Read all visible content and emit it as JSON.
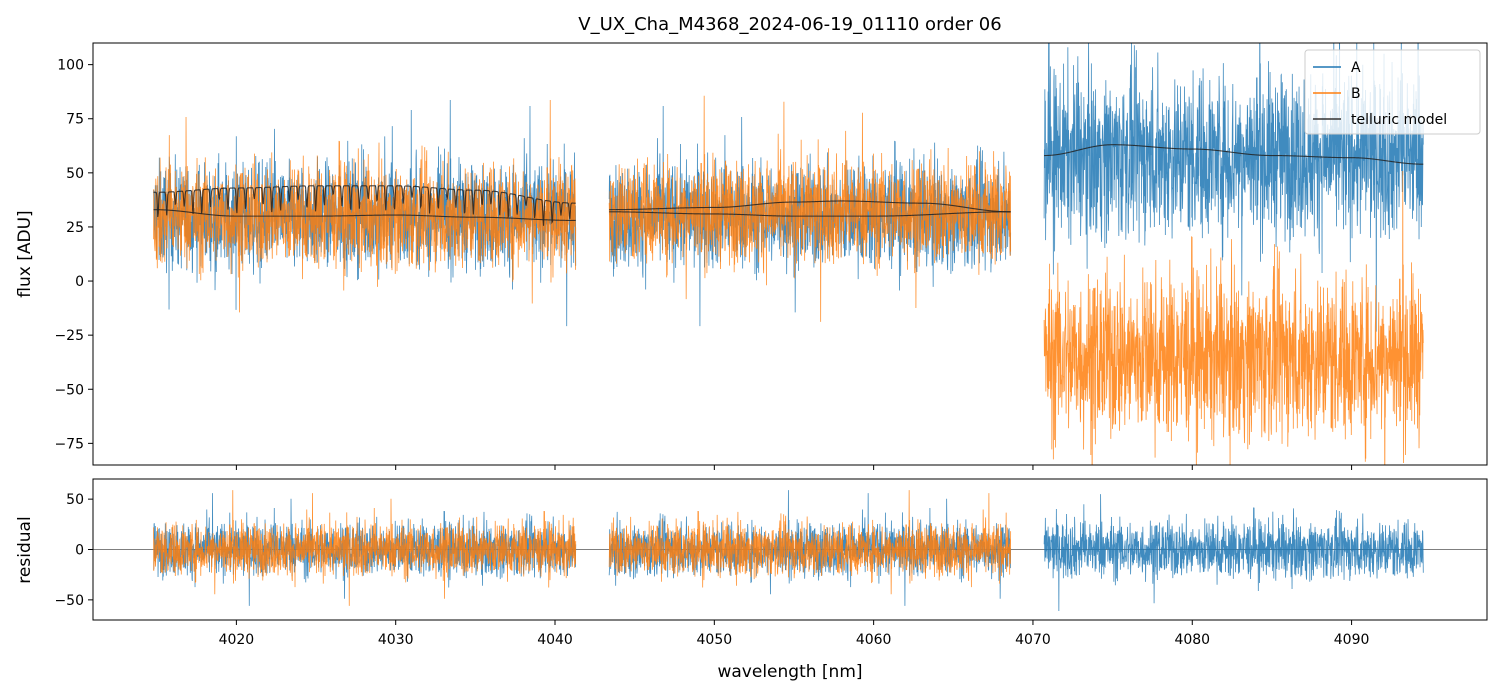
{
  "chart_data": [
    {
      "type": "line",
      "panel": "top",
      "title": "V_UX_Cha_M4368_2024-06-19_01110  order 06",
      "xlabel": "",
      "ylabel": "flux [ADU]",
      "xlim": [
        4011,
        4098.5
      ],
      "ylim": [
        -85,
        110
      ],
      "xticks": [
        4020,
        4030,
        4040,
        4050,
        4060,
        4070,
        4080,
        4090
      ],
      "yticks": [
        -75,
        -50,
        -25,
        0,
        25,
        50,
        75,
        100
      ],
      "grid": false,
      "legend": {
        "position": "top-right",
        "entries": [
          {
            "label": "A",
            "color": "#1f77b4"
          },
          {
            "label": "B",
            "color": "#ff7f0e"
          },
          {
            "label": "telluric model",
            "color": "#333333"
          }
        ]
      },
      "segments": [
        {
          "x_range": [
            4014.8,
            4041.3
          ],
          "series": [
            {
              "name": "A",
              "color": "#1f77b4",
              "mean": 30,
              "spread": 20
            },
            {
              "name": "B",
              "color": "#ff7f0e",
              "mean": 30,
              "spread": 20
            }
          ],
          "model_A": {
            "x": [
              4014.8,
              4020,
              4025,
              4030,
              4035,
              4041.3
            ],
            "y": [
              33,
              30,
              30,
              30.5,
              29.5,
              28
            ]
          },
          "model_B": {
            "x": [
              4014.8,
              4020,
              4025,
              4030,
              4035,
              4041.3
            ],
            "y": [
              41,
              43,
              44,
              44,
              42,
              36
            ],
            "absorption_lines": true
          }
        },
        {
          "x_range": [
            4043.4,
            4068.6
          ],
          "series": [
            {
              "name": "A",
              "color": "#1f77b4",
              "mean": 30,
              "spread": 20
            },
            {
              "name": "B",
              "color": "#ff7f0e",
              "mean": 32,
              "spread": 20
            }
          ],
          "model_A": {
            "x": [
              4043.4,
              4050,
              4055,
              4060,
              4068.6
            ],
            "y": [
              32,
              31,
              30,
              30,
              32
            ]
          },
          "model_B": {
            "x": [
              4043.4,
              4050,
              4055,
              4058,
              4063,
              4068.6
            ],
            "y": [
              33,
              34,
              36.5,
              37,
              36,
              32
            ]
          }
        },
        {
          "x_range": [
            4070.7,
            4094.5
          ],
          "series": [
            {
              "name": "A",
              "color": "#1f77b4",
              "mean": 58,
              "spread": 32
            },
            {
              "name": "B",
              "color": "#ff7f0e",
              "mean": -35,
              "spread": 32
            }
          ],
          "model_A": {
            "x": [
              4070.7,
              4075,
              4080,
              4085,
              4090,
              4094.5
            ],
            "y": [
              58,
              63,
              61,
              58,
              57,
              54
            ]
          }
        }
      ]
    },
    {
      "type": "line",
      "panel": "bottom",
      "title": "",
      "xlabel": "wavelength [nm]",
      "ylabel": "residual",
      "xlim": [
        4011,
        4098.5
      ],
      "ylim": [
        -70,
        70
      ],
      "xticks": [
        4020,
        4030,
        4040,
        4050,
        4060,
        4070,
        4080,
        4090
      ],
      "yticks": [
        -50,
        0,
        50
      ],
      "grid": false,
      "zero_line": true,
      "segments": [
        {
          "x_range": [
            4014.8,
            4041.3
          ],
          "series": [
            {
              "name": "A",
              "color": "#1f77b4",
              "mean": 0,
              "spread": 22
            },
            {
              "name": "B",
              "color": "#ff7f0e",
              "mean": 0,
              "spread": 22
            }
          ]
        },
        {
          "x_range": [
            4043.4,
            4068.6
          ],
          "series": [
            {
              "name": "A",
              "color": "#1f77b4",
              "mean": 0,
              "spread": 22
            },
            {
              "name": "B",
              "color": "#ff7f0e",
              "mean": 0,
              "spread": 22
            }
          ]
        },
        {
          "x_range": [
            4070.7,
            4094.5
          ],
          "series": [
            {
              "name": "A",
              "color": "#1f77b4",
              "mean": 0,
              "spread": 24
            }
          ]
        }
      ]
    }
  ]
}
